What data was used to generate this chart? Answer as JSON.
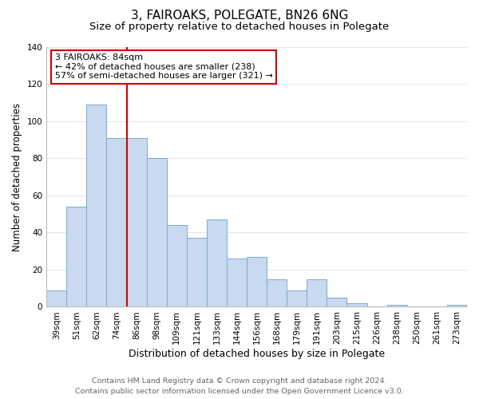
{
  "title": "3, FAIROAKS, POLEGATE, BN26 6NG",
  "subtitle": "Size of property relative to detached houses in Polegate",
  "xlabel": "Distribution of detached houses by size in Polegate",
  "ylabel": "Number of detached properties",
  "bar_labels": [
    "39sqm",
    "51sqm",
    "62sqm",
    "74sqm",
    "86sqm",
    "98sqm",
    "109sqm",
    "121sqm",
    "133sqm",
    "144sqm",
    "156sqm",
    "168sqm",
    "179sqm",
    "191sqm",
    "203sqm",
    "215sqm",
    "226sqm",
    "238sqm",
    "250sqm",
    "261sqm",
    "273sqm"
  ],
  "bar_values": [
    9,
    54,
    109,
    91,
    91,
    80,
    44,
    37,
    47,
    26,
    27,
    15,
    9,
    15,
    5,
    2,
    0,
    1,
    0,
    0,
    1
  ],
  "bar_color": "#c9d9f0",
  "bar_edge_color": "#7aaad0",
  "vline_index": 3.5,
  "vline_color": "#cc0000",
  "annotation_line1": "3 FAIROAKS: 84sqm",
  "annotation_line2": "← 42% of detached houses are smaller (238)",
  "annotation_line3": "57% of semi-detached houses are larger (321) →",
  "annotation_box_color": "#ffffff",
  "annotation_box_edgecolor": "#cc0000",
  "ylim": [
    0,
    140
  ],
  "yticks": [
    0,
    20,
    40,
    60,
    80,
    100,
    120,
    140
  ],
  "footer_line1": "Contains HM Land Registry data © Crown copyright and database right 2024.",
  "footer_line2": "Contains public sector information licensed under the Open Government Licence v3.0.",
  "background_color": "#ffffff",
  "grid_color": "#dde8f4",
  "title_fontsize": 11,
  "subtitle_fontsize": 9.5,
  "ylabel_fontsize": 8.5,
  "xlabel_fontsize": 9,
  "tick_fontsize": 7.5,
  "annotation_fontsize": 8,
  "footer_fontsize": 6.8
}
